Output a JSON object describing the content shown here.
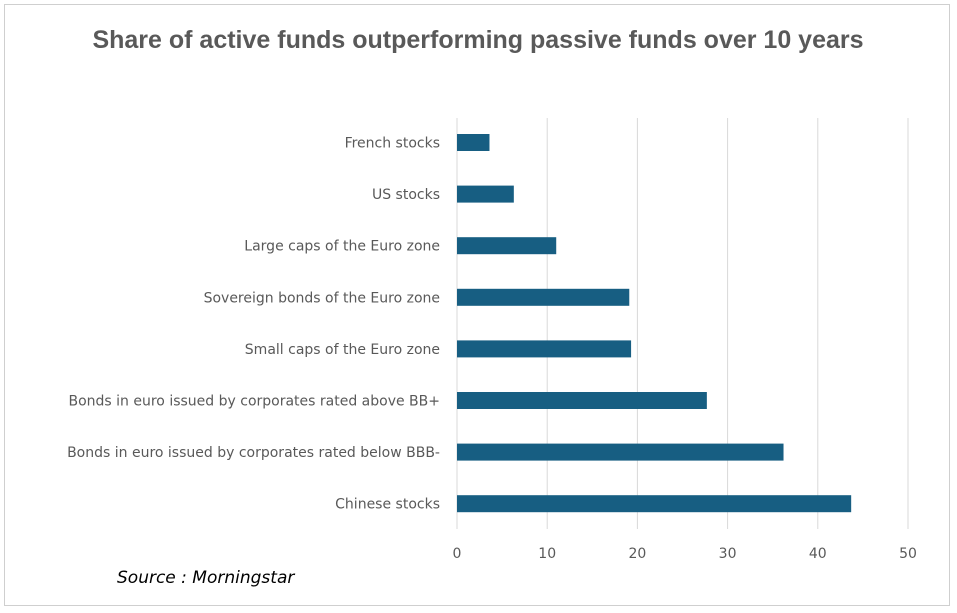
{
  "chart_data": {
    "type": "bar",
    "orientation": "horizontal",
    "title": "Share of active funds outperforming passive funds over 10 years",
    "categories": [
      "French stocks",
      "US stocks",
      "Large caps of the Euro zone",
      "Sovereign bonds of the Euro zone",
      "Small caps of the Euro zone",
      "Bonds in euro issued by corporates rated above BB+",
      "Bonds in euro issued by corporates rated below BBB-",
      "Chinese stocks"
    ],
    "values": [
      3.6,
      6.3,
      11.0,
      19.1,
      19.3,
      27.7,
      36.2,
      43.7
    ],
    "xlim": [
      0,
      50
    ],
    "xticks": [
      "0",
      "10",
      "20",
      "30",
      "40",
      "50"
    ],
    "grid": true,
    "legend": "none",
    "bar_color": "#175e82",
    "grid_color": "#d9d9d9",
    "source": "Source : Morningstar"
  }
}
